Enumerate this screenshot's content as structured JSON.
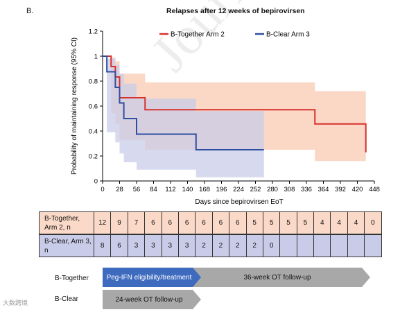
{
  "panel_label": "B.",
  "watermark": "Journal Pre",
  "chart_data": {
    "type": "step",
    "title": "Relapses after 12 weeks of bepirovirsen",
    "xlabel": "Days since bepirovirsen EoT",
    "ylabel": "Probability of maintaining response (95% CI)",
    "xlim": [
      0,
      448
    ],
    "ylim": [
      0,
      1.2
    ],
    "xticks": [
      0,
      28,
      56,
      84,
      112,
      140,
      168,
      196,
      224,
      252,
      280,
      308,
      336,
      364,
      392,
      420,
      448
    ],
    "yticks": [
      0,
      0.2,
      0.4,
      0.6,
      0.8,
      1,
      1.2
    ],
    "legend_position": "top-right",
    "series": [
      {
        "name": "B-Together Arm 2",
        "color": "#d8312b",
        "band_color": "#f9cbb3",
        "x": [
          0,
          14,
          21,
          28,
          42,
          70,
          350,
          434
        ],
        "y": [
          1.0,
          0.917,
          0.833,
          0.667,
          0.667,
          0.571,
          0.457,
          0.229
        ],
        "band": [
          {
            "x": 0,
            "lo": 1.0,
            "hi": 1.0
          },
          {
            "x": 14,
            "lo": 0.54,
            "hi": 0.99
          },
          {
            "x": 21,
            "lo": 0.46,
            "hi": 0.96
          },
          {
            "x": 28,
            "lo": 0.33,
            "hi": 0.86
          },
          {
            "x": 70,
            "lo": 0.25,
            "hi": 0.79
          },
          {
            "x": 350,
            "lo": 0.16,
            "hi": 0.72
          },
          {
            "x": 434,
            "lo": 0.16,
            "hi": 0.72
          }
        ]
      },
      {
        "name": "B-Clear Arm 3",
        "color": "#2f4f9f",
        "band_color": "#c9cce8",
        "x": [
          0,
          7,
          21,
          28,
          35,
          42,
          56,
          154,
          266
        ],
        "y": [
          1.0,
          0.875,
          0.75,
          0.625,
          0.5,
          0.5,
          0.375,
          0.25,
          0.25
        ],
        "band": [
          {
            "x": 0,
            "lo": 1.0,
            "hi": 1.0
          },
          {
            "x": 7,
            "lo": 0.39,
            "hi": 0.98
          },
          {
            "x": 21,
            "lo": 0.31,
            "hi": 0.93
          },
          {
            "x": 28,
            "lo": 0.22,
            "hi": 0.86
          },
          {
            "x": 35,
            "lo": 0.15,
            "hi": 0.78
          },
          {
            "x": 56,
            "lo": 0.09,
            "hi": 0.66
          },
          {
            "x": 154,
            "lo": 0.03,
            "hi": 0.56
          },
          {
            "x": 266,
            "lo": 0.03,
            "hi": 0.56
          }
        ]
      }
    ]
  },
  "risk_table": {
    "rows": [
      {
        "label": "B-Together, Arm 2, n",
        "color": "#fbd9c8",
        "values": [
          "12",
          "9",
          "7",
          "6",
          "6",
          "6",
          "6",
          "6",
          "6",
          "5",
          "5",
          "5",
          "5",
          "4",
          "4",
          "4",
          "0"
        ]
      },
      {
        "label": "B-Clear, Arm 3, n",
        "color": "#c9cce8",
        "values": [
          "8",
          "6",
          "3",
          "3",
          "3",
          "3",
          "2",
          "2",
          "2",
          "2",
          "0",
          "",
          "",
          "",
          "",
          "",
          ""
        ]
      }
    ]
  },
  "timeline": {
    "together_label": "B-Together",
    "clear_label": "B-Clear",
    "peg_ifn_text": "Peg-IFN eligibility/treatment",
    "followup36": "36-week OT follow-up",
    "followup24": "24-week OT follow-up",
    "peg_color": "#3f6bbf",
    "followup_color": "#a8a8a8"
  },
  "brand_text": "大数跨境"
}
